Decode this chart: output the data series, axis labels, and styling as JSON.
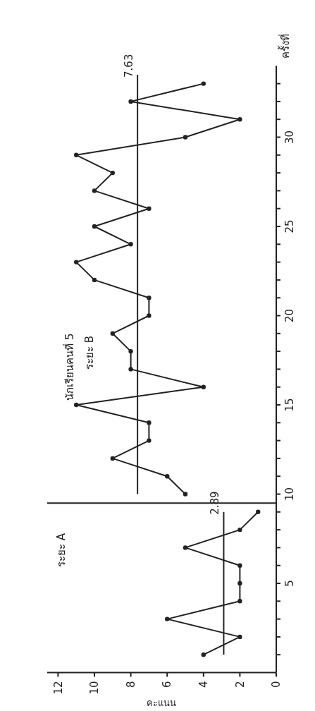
{
  "chart_data": {
    "type": "line",
    "title": "นักเรียนคนที่ 5",
    "xlabel": "คะแนน",
    "ylabel": "ครั้งที่",
    "annotations": [
      "ระยะ A",
      "ระยะ B",
      {
        "text": "2.89",
        "x": 2.89,
        "y": 9
      },
      {
        "text": "7.63",
        "x": 7.63,
        "y": 33.5
      }
    ],
    "series": [
      {
        "color": "#222222",
        "marker": "circle",
        "x": [
          4,
          2,
          6,
          2,
          2,
          2,
          5,
          2,
          1
        ],
        "values": [
          1,
          2,
          3,
          4,
          5,
          6,
          7,
          8,
          9
        ]
      },
      {
        "color": "#222222",
        "marker": "circle",
        "x": [
          5,
          6,
          9,
          7,
          7,
          11,
          4,
          8,
          8,
          9,
          7,
          7,
          10,
          11,
          8,
          10,
          7,
          10,
          9,
          11,
          5,
          2,
          8,
          4
        ],
        "values": [
          10,
          11,
          12,
          13,
          14,
          15,
          16,
          17,
          18,
          19,
          20,
          21,
          22,
          23,
          24,
          25,
          26,
          27,
          28,
          29,
          30,
          31,
          32,
          33
        ]
      },
      {
        "color": "#222222",
        "marker": "none",
        "x": [
          2.89,
          2.89
        ],
        "values": [
          1,
          9
        ]
      },
      {
        "color": "#222222",
        "marker": "none",
        "x": [
          7.63,
          7.63
        ],
        "values": [
          10,
          33.5
        ]
      }
    ],
    "ref_lines": [
      {
        "axis": "y",
        "value": 9.5,
        "color": "#222222"
      }
    ],
    "xlim": [
      12.6,
      0
    ],
    "xticks": [
      12,
      10,
      8,
      6,
      4,
      2,
      0
    ],
    "ylim": [
      0,
      34
    ],
    "yticks": [
      {
        "value": 1,
        "label": null
      },
      {
        "value": 2,
        "label": null
      },
      {
        "value": 3,
        "label": null
      },
      {
        "value": 4,
        "label": null
      },
      5,
      {
        "value": 6,
        "label": null
      },
      {
        "value": 7,
        "label": null
      },
      {
        "value": 8,
        "label": null
      },
      {
        "value": 9,
        "label": null
      },
      10,
      {
        "value": 11,
        "label": null
      },
      {
        "value": 12,
        "label": null
      },
      {
        "value": 13,
        "label": null
      },
      {
        "value": 14,
        "label": null
      },
      15,
      {
        "value": 16,
        "label": null
      },
      {
        "value": 17,
        "label": null
      },
      {
        "value": 18,
        "label": null
      },
      {
        "value": 19,
        "label": null
      },
      20,
      {
        "value": 21,
        "label": null
      },
      {
        "value": 22,
        "label": null
      },
      {
        "value": 23,
        "label": null
      },
      {
        "value": 24,
        "label": null
      },
      25,
      {
        "value": 26,
        "label": null
      },
      {
        "value": 27,
        "label": null
      },
      {
        "value": 28,
        "label": null
      },
      {
        "value": 29,
        "label": null
      },
      30,
      {
        "value": 31,
        "label": null
      },
      {
        "value": 32,
        "label": null
      },
      {
        "value": 33,
        "label": null
      }
    ],
    "grid": false
  }
}
